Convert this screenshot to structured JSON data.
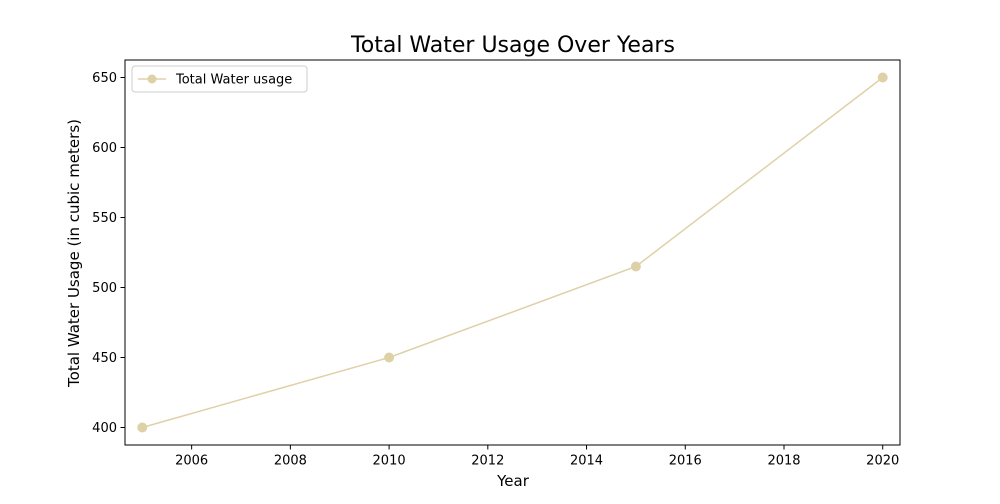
{
  "chart_data": {
    "type": "line",
    "title": "Total Water Usage Over Years",
    "xlabel": "Year",
    "ylabel": "Total Water Usage (in cubic meters)",
    "xlim": [
      2004.65,
      2020.35
    ],
    "ylim": [
      387.5,
      662.5
    ],
    "x_ticks": [
      "2006",
      "2008",
      "2010",
      "2012",
      "2014",
      "2016",
      "2018",
      "2020"
    ],
    "y_ticks": [
      "400",
      "450",
      "500",
      "550",
      "600",
      "650"
    ],
    "x_tick_values": [
      2006,
      2008,
      2010,
      2012,
      2014,
      2016,
      2018,
      2020
    ],
    "y_tick_values": [
      400,
      450,
      500,
      550,
      600,
      650
    ],
    "grid": false,
    "legend_position": "upper-left",
    "series": [
      {
        "name": "Total Water usage",
        "color": "#dfd1a7",
        "marker": "circle",
        "x": [
          2005,
          2010,
          2015,
          2020
        ],
        "y": [
          400,
          450,
          515,
          650
        ]
      }
    ]
  }
}
